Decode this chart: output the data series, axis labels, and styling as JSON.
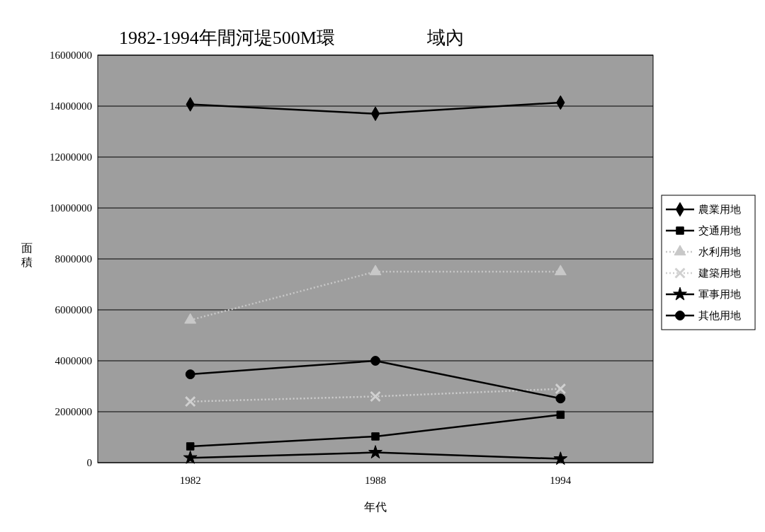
{
  "chart_data": {
    "type": "line",
    "title": "1982-1994年間河堤500M環                    域內",
    "xlabel": "年代",
    "ylabel": "面積",
    "categories": [
      "1982",
      "1988",
      "1994"
    ],
    "ylim": [
      0,
      16000000
    ],
    "yticks": [
      0,
      2000000,
      4000000,
      6000000,
      8000000,
      10000000,
      12000000,
      14000000,
      16000000
    ],
    "grid": "y",
    "legend": "right",
    "series": [
      {
        "name": "農業用地",
        "color": "#000000",
        "marker": "diamond",
        "line_style": "solid",
        "values": [
          14070000,
          13700000,
          14140000
        ]
      },
      {
        "name": "交通用地",
        "color": "#000000",
        "marker": "square",
        "line_style": "solid",
        "values": [
          640000,
          1030000,
          1880000
        ]
      },
      {
        "name": "水利用地",
        "color": "#c8c8c8",
        "marker": "triangle",
        "line_style": "dotted",
        "values": [
          5600000,
          7500000,
          7500000
        ]
      },
      {
        "name": "建築用地",
        "color": "#d0d0d0",
        "marker": "cross",
        "line_style": "dotted",
        "values": [
          2400000,
          2600000,
          2900000
        ]
      },
      {
        "name": "軍事用地",
        "color": "#000000",
        "marker": "star",
        "line_style": "solid",
        "values": [
          190000,
          400000,
          150000
        ]
      },
      {
        "name": "其他用地",
        "color": "#000000",
        "marker": "circle",
        "line_style": "solid",
        "values": [
          3470000,
          4000000,
          2520000
        ]
      }
    ]
  }
}
